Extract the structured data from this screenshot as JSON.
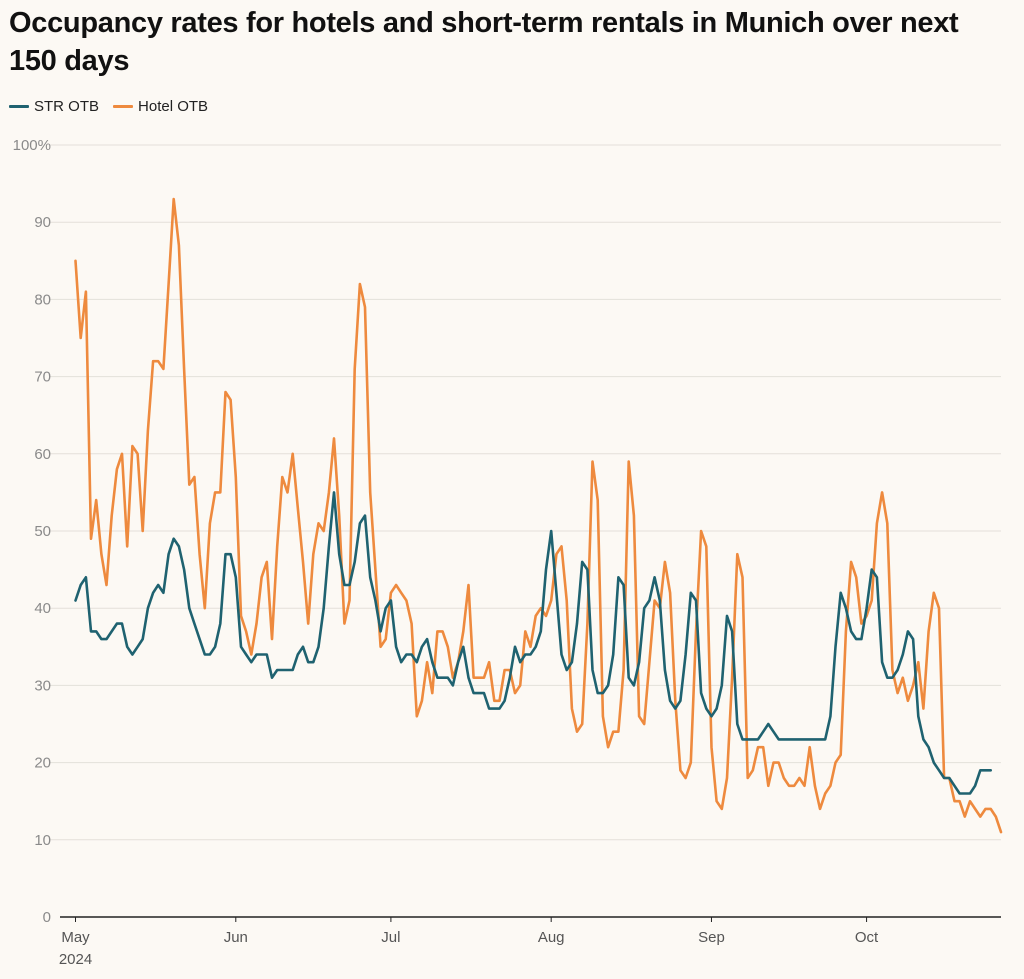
{
  "chart_data": {
    "type": "line",
    "title": "Occupancy rates for hotels and short-term rentals in Munich over next 150 days",
    "xlabel": "",
    "ylabel": "",
    "ylim": [
      0,
      100
    ],
    "y_ticks": [
      "0",
      "10",
      "20",
      "30",
      "40",
      "50",
      "60",
      "70",
      "80",
      "90",
      "100%"
    ],
    "x_ticks": [
      {
        "label": "May",
        "sub": "2024",
        "day": 3
      },
      {
        "label": "Jun",
        "sub": "",
        "day": 34
      },
      {
        "label": "Jul",
        "sub": "",
        "day": 64
      },
      {
        "label": "Aug",
        "sub": "",
        "day": 95
      },
      {
        "label": "Sep",
        "sub": "",
        "day": 126
      },
      {
        "label": "Oct",
        "sub": "",
        "day": 156
      }
    ],
    "x_start_day": 0,
    "x_end_day": 182,
    "gridlines": true,
    "legend_position": "top-left",
    "series": [
      {
        "name": "STR OTB",
        "color": "#1f6270",
        "start_day": 3,
        "values": [
          41,
          43,
          44,
          37,
          37,
          36,
          36,
          37,
          38,
          38,
          35,
          34,
          35,
          36,
          40,
          42,
          43,
          42,
          47,
          49,
          48,
          45,
          40,
          38,
          36,
          34,
          34,
          35,
          38,
          47,
          47,
          44,
          35,
          34,
          33,
          34,
          34,
          34,
          31,
          32,
          32,
          32,
          32,
          34,
          35,
          33,
          33,
          35,
          40,
          48,
          55,
          47,
          43,
          43,
          46,
          51,
          52,
          44,
          41,
          37,
          40,
          41,
          35,
          33,
          34,
          34,
          33,
          35,
          36,
          33,
          31,
          31,
          31,
          30,
          33,
          35,
          31,
          29,
          29,
          29,
          27,
          27,
          27,
          28,
          31,
          35,
          33,
          34,
          34,
          35,
          37,
          45,
          50,
          42,
          34,
          32,
          33,
          38,
          46,
          45,
          32,
          29,
          29,
          30,
          34,
          44,
          43,
          31,
          30,
          33,
          40,
          41,
          44,
          41,
          32,
          28,
          27,
          28,
          34,
          42,
          41,
          29,
          27,
          26,
          27,
          30,
          39,
          37,
          25,
          23,
          23,
          23,
          23,
          24,
          25,
          24,
          23,
          23,
          23,
          23,
          23,
          23,
          23,
          23,
          23,
          23,
          26,
          35,
          42,
          40,
          37,
          36,
          36,
          40,
          45,
          44,
          33,
          31,
          31,
          32,
          34,
          37,
          36,
          26,
          23,
          22,
          20,
          19,
          18,
          18,
          17,
          16,
          16,
          16,
          17,
          19,
          19,
          19
        ]
      },
      {
        "name": "Hotel OTB",
        "color": "#ee8a3e",
        "start_day": 3,
        "values": [
          85,
          75,
          81,
          49,
          54,
          47,
          43,
          52,
          58,
          60,
          48,
          61,
          60,
          50,
          63,
          72,
          72,
          71,
          82,
          93,
          87,
          71,
          56,
          57,
          47,
          40,
          51,
          55,
          55,
          68,
          67,
          57,
          39,
          37,
          34,
          38,
          44,
          46,
          36,
          48,
          57,
          55,
          60,
          53,
          46,
          38,
          47,
          51,
          50,
          55,
          62,
          52,
          38,
          41,
          71,
          82,
          79,
          55,
          45,
          35,
          36,
          42,
          43,
          42,
          41,
          38,
          26,
          28,
          33,
          29,
          37,
          37,
          35,
          31,
          33,
          37,
          43,
          31,
          31,
          31,
          33,
          28,
          28,
          32,
          32,
          29,
          30,
          37,
          35,
          39,
          40,
          39,
          41,
          47,
          48,
          41,
          27,
          24,
          25,
          38,
          59,
          54,
          26,
          22,
          24,
          24,
          32,
          59,
          52,
          26,
          25,
          33,
          41,
          40,
          46,
          42,
          28,
          19,
          18,
          20,
          37,
          50,
          48,
          22,
          15,
          14,
          18,
          31,
          47,
          44,
          18,
          19,
          22,
          22,
          17,
          20,
          20,
          18,
          17,
          17,
          18,
          17,
          22,
          17,
          14,
          16,
          17,
          20,
          21,
          37,
          46,
          44,
          38,
          39,
          41,
          51,
          55,
          51,
          32,
          29,
          31,
          28,
          30,
          33,
          27,
          37,
          42,
          40,
          18,
          18,
          15,
          15,
          13,
          15,
          14,
          13,
          14,
          14,
          13,
          11
        ]
      }
    ]
  }
}
